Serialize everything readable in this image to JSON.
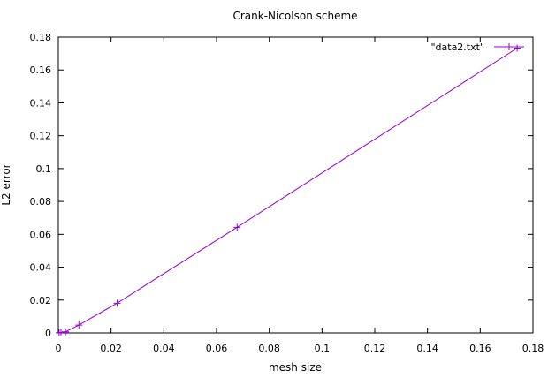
{
  "chart_data": {
    "type": "line",
    "title": "Crank-Nicolson scheme",
    "xlabel": "mesh size",
    "ylabel": "L2 error",
    "xlim": [
      0,
      0.18
    ],
    "ylim": [
      0,
      0.18
    ],
    "x_ticks": [
      "0",
      "0.02",
      "0.04",
      "0.06",
      "0.08",
      "0.1",
      "0.12",
      "0.14",
      "0.16",
      "0.18"
    ],
    "y_ticks": [
      "0",
      "0.02",
      "0.04",
      "0.06",
      "0.08",
      "0.1",
      "0.12",
      "0.14",
      "0.16",
      "0.18"
    ],
    "x_tick_values": [
      0,
      0.02,
      0.04,
      0.06,
      0.08,
      0.1,
      0.12,
      0.14,
      0.16,
      0.18
    ],
    "y_tick_values": [
      0,
      0.02,
      0.04,
      0.06,
      0.08,
      0.1,
      0.12,
      0.14,
      0.16,
      0.18
    ],
    "grid": false,
    "legend_position": "top-right",
    "series": [
      {
        "name": "\"data2.txt\"",
        "color": "#9400d3",
        "marker": "plus",
        "x": [
          0.0003,
          0.001,
          0.0027,
          0.0078,
          0.0223,
          0.0678,
          0.174
        ],
        "y": [
          0.0001,
          0.0003,
          0.0007,
          0.0048,
          0.0181,
          0.0643,
          0.1733
        ]
      }
    ]
  }
}
